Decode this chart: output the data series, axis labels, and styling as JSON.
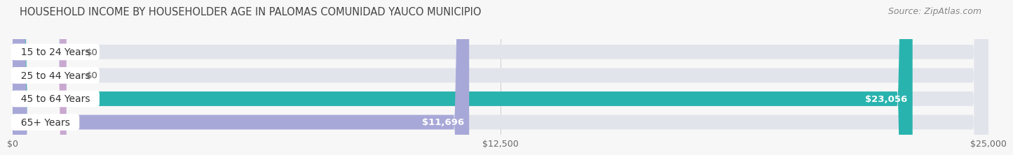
{
  "title": "HOUSEHOLD INCOME BY HOUSEHOLDER AGE IN PALOMAS COMUNIDAD YAUCO MUNICIPIO",
  "source": "Source: ZipAtlas.com",
  "categories": [
    "15 to 24 Years",
    "25 to 44 Years",
    "45 to 64 Years",
    "65+ Years"
  ],
  "values": [
    0,
    0,
    23056,
    11696
  ],
  "bar_colors": [
    "#aac4e2",
    "#c9a8d0",
    "#29b3ae",
    "#a8a8d8"
  ],
  "bar_bg_color": "#e2e4ec",
  "xlim": [
    0,
    25000
  ],
  "xticks": [
    0,
    12500,
    25000
  ],
  "xtick_labels": [
    "$0",
    "$12,500",
    "$25,000"
  ],
  "value_labels": [
    "$0",
    "$0",
    "$23,056",
    "$11,696"
  ],
  "fig_bg_color": "#f7f7f7",
  "title_fontsize": 10.5,
  "source_fontsize": 9,
  "bar_label_fontsize": 10,
  "value_label_fontsize": 9.5,
  "tick_fontsize": 9,
  "bar_height": 0.62,
  "bar_spacing": 1.0
}
